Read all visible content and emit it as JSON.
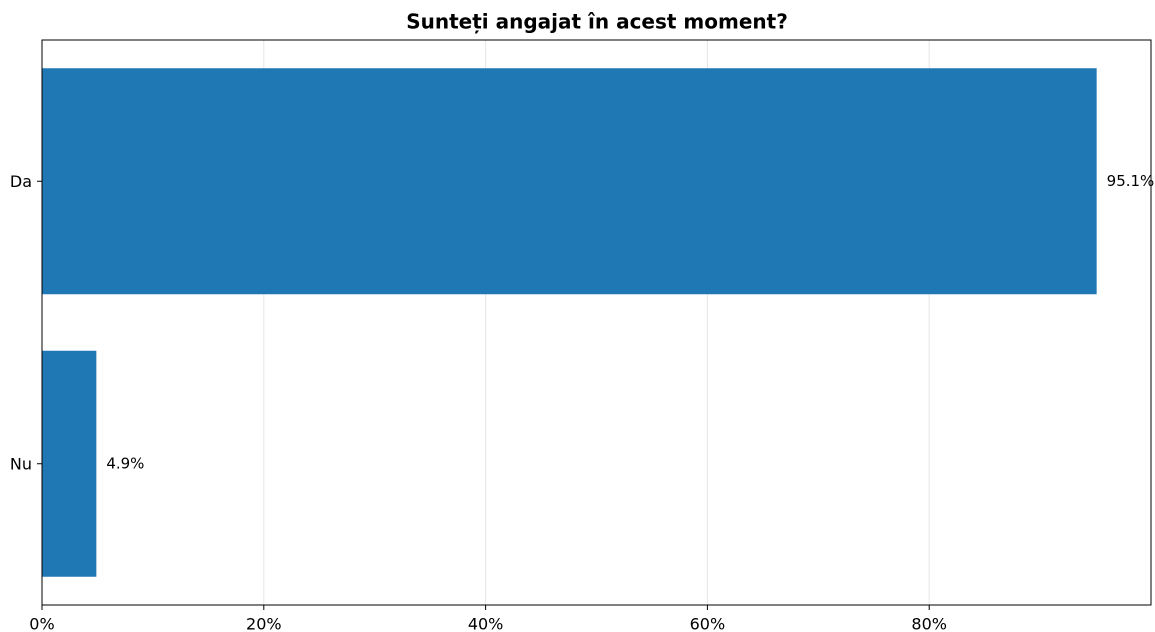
{
  "chart_data": {
    "type": "bar",
    "orientation": "horizontal",
    "title": "Sunteți angajat în acest moment?",
    "categories": [
      "Da",
      "Nu"
    ],
    "values": [
      95.1,
      4.9
    ],
    "value_labels": [
      "95.1%",
      "4.9%"
    ],
    "color": "#1f77b4",
    "xlim": [
      0,
      100
    ],
    "xticks": [
      {
        "value": 0,
        "label": "0%"
      },
      {
        "value": 20,
        "label": "20%"
      },
      {
        "value": 40,
        "label": "40%"
      },
      {
        "value": 60,
        "label": "60%"
      },
      {
        "value": 80,
        "label": "80%"
      }
    ],
    "grid": true
  }
}
